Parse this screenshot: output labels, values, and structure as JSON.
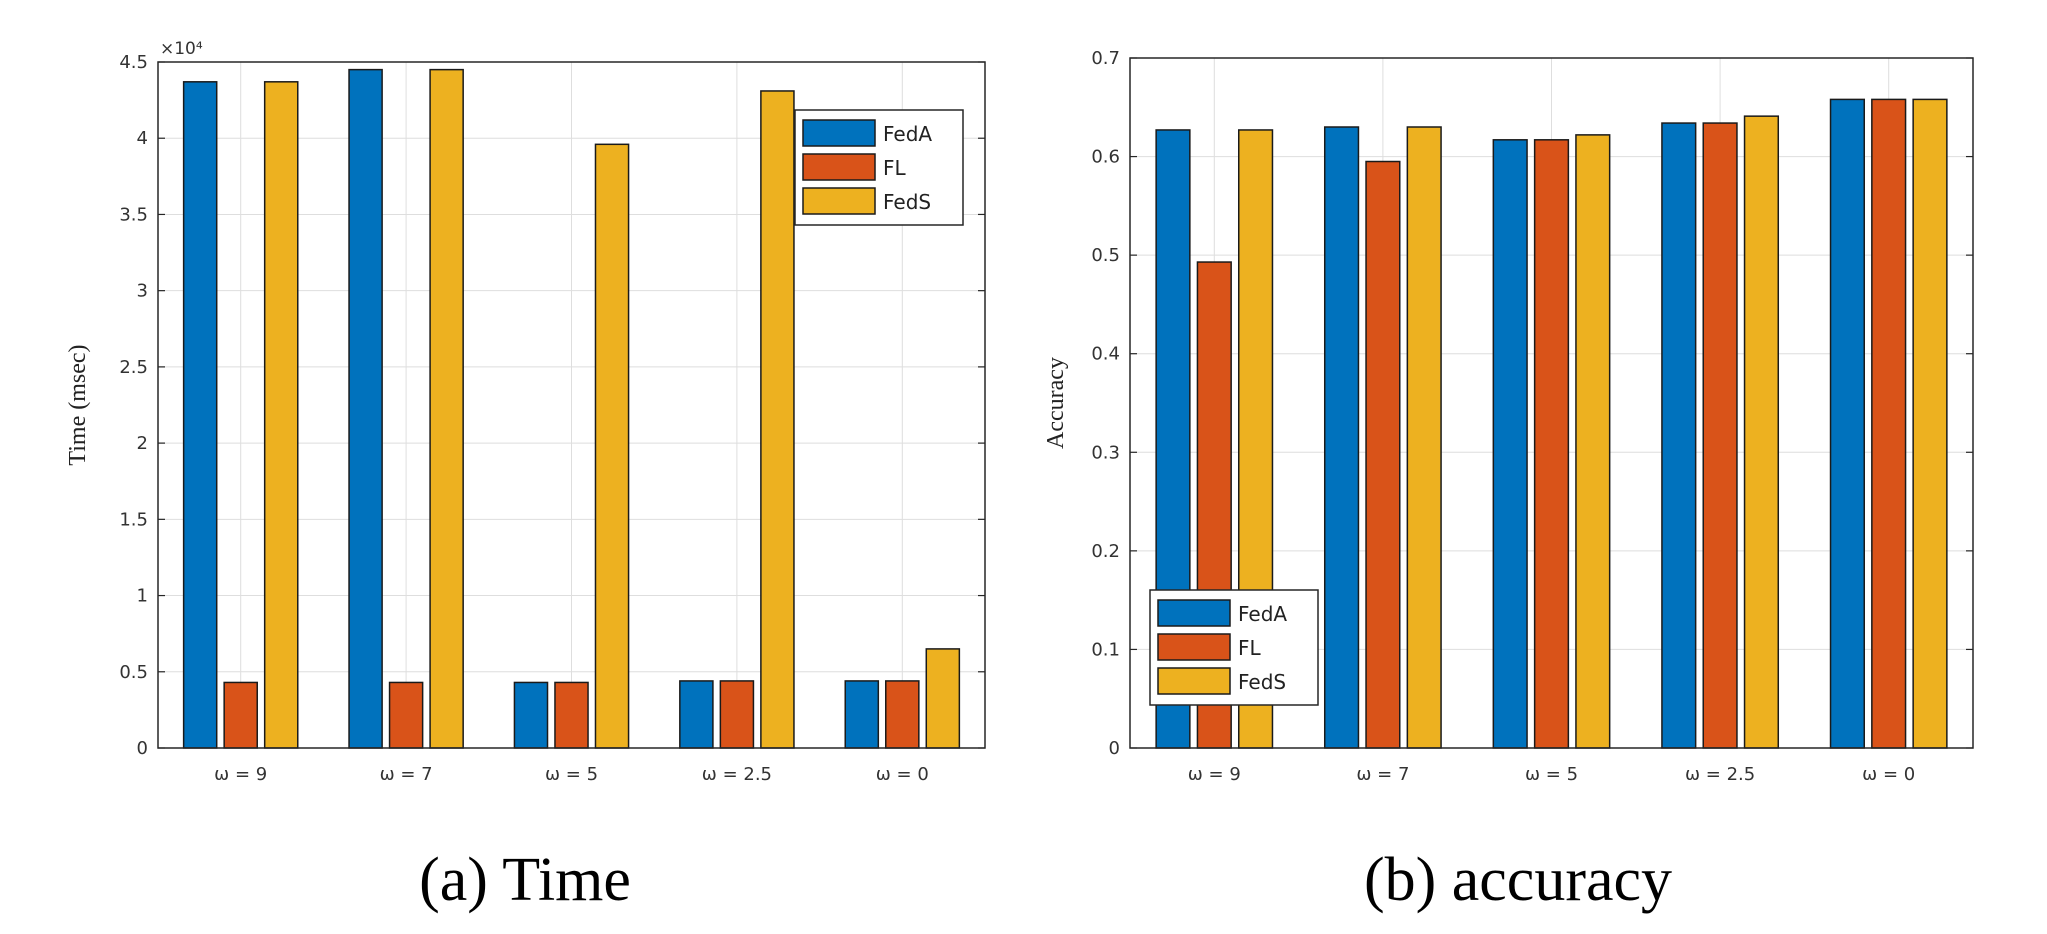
{
  "chart_data": [
    {
      "type": "bar",
      "title": "",
      "caption": "(a)  Time",
      "xlabel": "",
      "ylabel": "Time (msec)",
      "y_exponent_label": "×10⁴",
      "categories": [
        "ω = 9",
        "ω = 7",
        "ω = 5",
        "ω = 2.5",
        "ω = 0"
      ],
      "series": [
        {
          "name": "FedA",
          "values": [
            4.37,
            4.45,
            0.43,
            0.44,
            0.44
          ]
        },
        {
          "name": "FL",
          "values": [
            0.43,
            0.43,
            0.43,
            0.44,
            0.44
          ]
        },
        {
          "name": "FedS",
          "values": [
            4.37,
            4.45,
            3.96,
            4.31,
            0.65
          ]
        }
      ],
      "ylim": [
        0,
        4.5
      ],
      "yticks": [
        "0",
        "0.5",
        "1",
        "1.5",
        "2",
        "2.5",
        "3",
        "3.5",
        "4",
        "4.5"
      ],
      "grid": true,
      "legend_position": "top-right"
    },
    {
      "type": "bar",
      "title": "",
      "caption": "(b)  accuracy",
      "xlabel": "",
      "ylabel": "Accuracy",
      "categories": [
        "ω = 9",
        "ω = 7",
        "ω = 5",
        "ω = 2.5",
        "ω = 0"
      ],
      "series": [
        {
          "name": "FedA",
          "values": [
            0.627,
            0.63,
            0.617,
            0.634,
            0.658
          ]
        },
        {
          "name": "FL",
          "values": [
            0.493,
            0.595,
            0.617,
            0.634,
            0.658
          ]
        },
        {
          "name": "FedS",
          "values": [
            0.627,
            0.63,
            0.622,
            0.641,
            0.658
          ]
        }
      ],
      "ylim": [
        0,
        0.7
      ],
      "yticks": [
        "0",
        "0.1",
        "0.2",
        "0.3",
        "0.4",
        "0.5",
        "0.6",
        "0.7"
      ],
      "grid": true,
      "legend_position": "bottom-left"
    }
  ],
  "colors": {
    "FedA": "#0072BD",
    "FL": "#D95319",
    "FedS": "#EDB120",
    "grid": "#dedede",
    "axis": "#262626"
  }
}
